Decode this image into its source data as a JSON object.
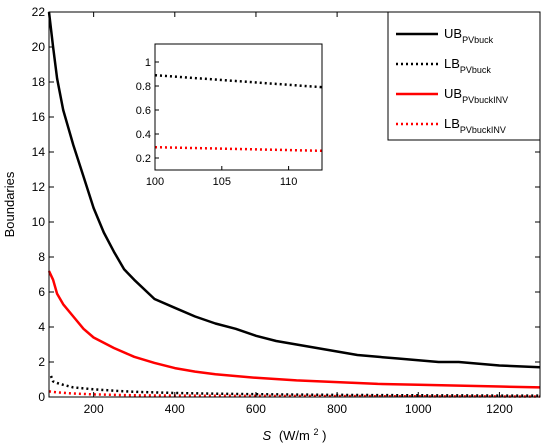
{
  "chart_data": [
    {
      "type": "line",
      "xlabel_symbol": "S",
      "xlabel_unit": "(W/m",
      "xlabel_unit_sup": "2",
      "xlabel_unit_close": ")",
      "ylabel": "Boundaries",
      "xlim": [
        90,
        1300
      ],
      "ylim": [
        0,
        22
      ],
      "xticks": [
        200,
        400,
        600,
        800,
        1000,
        1200
      ],
      "yticks": [
        0,
        2,
        4,
        6,
        8,
        10,
        12,
        14,
        16,
        18,
        20,
        22
      ],
      "grid": false,
      "legend_position": "top-right",
      "series": [
        {
          "name": "UB",
          "sub": "PVbuck",
          "color": "#000000",
          "style": "solid",
          "x": [
            90,
            100,
            110,
            125,
            150,
            175,
            200,
            225,
            250,
            275,
            300,
            350,
            400,
            450,
            500,
            550,
            600,
            650,
            700,
            750,
            800,
            850,
            900,
            950,
            1000,
            1050,
            1100,
            1150,
            1200,
            1250,
            1300
          ],
          "y": [
            22.0,
            20.0,
            18.2,
            16.4,
            14.4,
            12.6,
            10.8,
            9.4,
            8.3,
            7.3,
            6.7,
            5.6,
            5.1,
            4.6,
            4.2,
            3.9,
            3.5,
            3.2,
            3.0,
            2.8,
            2.6,
            2.4,
            2.3,
            2.2,
            2.1,
            2.0,
            2.0,
            1.9,
            1.8,
            1.75,
            1.7
          ]
        },
        {
          "name": "LB",
          "sub": "PVbuck",
          "color": "#000000",
          "style": "dotted",
          "x": [
            95,
            100,
            110,
            125,
            150,
            200,
            250,
            300,
            400,
            500,
            600,
            700,
            800,
            900,
            1000,
            1100,
            1200,
            1300
          ],
          "y": [
            1.2,
            0.89,
            0.8,
            0.7,
            0.55,
            0.44,
            0.36,
            0.3,
            0.23,
            0.19,
            0.16,
            0.14,
            0.12,
            0.11,
            0.1,
            0.09,
            0.08,
            0.08
          ]
        },
        {
          "name": "UB",
          "sub": "PVbuckINV",
          "color": "#ff0000",
          "style": "solid",
          "x": [
            90,
            100,
            110,
            125,
            150,
            175,
            200,
            250,
            300,
            350,
            400,
            450,
            500,
            600,
            700,
            800,
            900,
            1000,
            1100,
            1200,
            1300
          ],
          "y": [
            7.2,
            6.7,
            5.9,
            5.3,
            4.6,
            3.9,
            3.4,
            2.8,
            2.3,
            1.95,
            1.65,
            1.45,
            1.3,
            1.1,
            0.95,
            0.85,
            0.75,
            0.7,
            0.65,
            0.6,
            0.55
          ]
        },
        {
          "name": "LB",
          "sub": "PVbuckINV",
          "color": "#ff0000",
          "style": "dotted",
          "x": [
            90,
            100,
            110,
            150,
            200,
            300,
            400,
            600,
            800,
            1000,
            1300
          ],
          "y": [
            0.32,
            0.29,
            0.26,
            0.2,
            0.15,
            0.1,
            0.08,
            0.06,
            0.05,
            0.04,
            0.03
          ]
        }
      ]
    },
    {
      "type": "line",
      "inset": true,
      "xlim": [
        100,
        112.5
      ],
      "ylim": [
        0.1,
        1.15
      ],
      "xticks": [
        100,
        105,
        110
      ],
      "yticks": [
        0.2,
        0.4,
        0.6,
        0.8,
        1
      ],
      "series": [
        {
          "color": "#000000",
          "style": "dotted",
          "x": [
            100,
            112.5
          ],
          "y": [
            0.89,
            0.79
          ]
        },
        {
          "color": "#ff0000",
          "style": "dotted",
          "x": [
            100,
            112.5
          ],
          "y": [
            0.29,
            0.26
          ]
        }
      ]
    }
  ]
}
